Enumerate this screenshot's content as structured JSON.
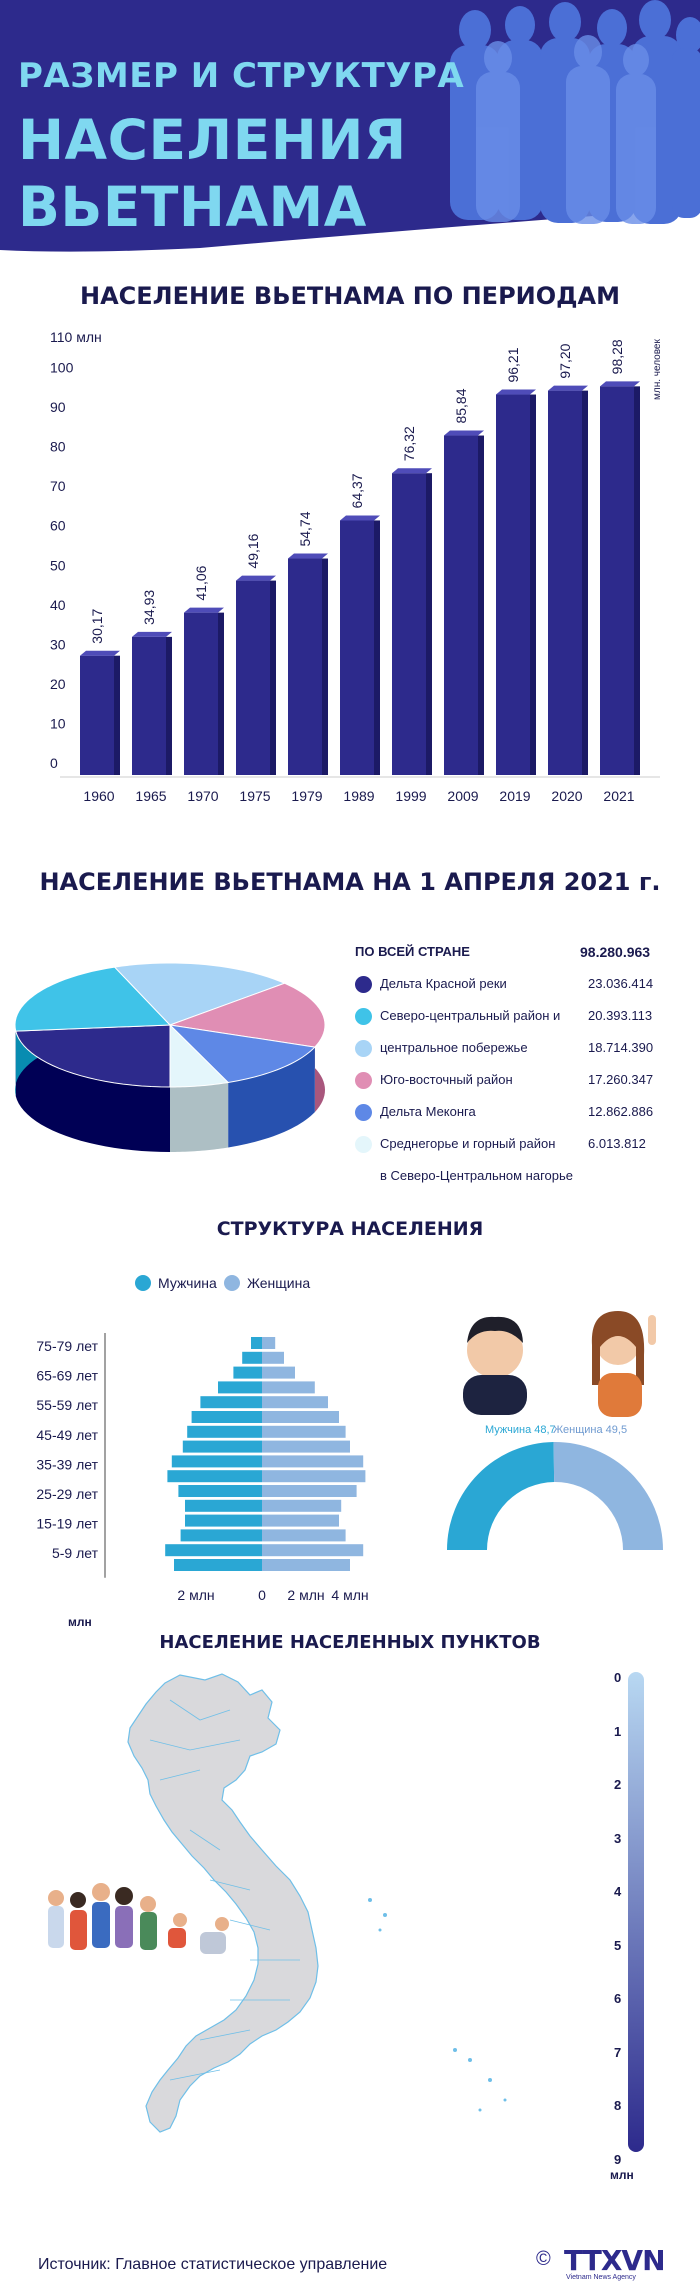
{
  "header": {
    "title_line1": "РАЗМЕР И СТРУКТУРА",
    "title_line2": "НАСЕЛЕНИЯ",
    "title_line3": "ВЬЕТНАМА"
  },
  "colors": {
    "navy": "#2d2a8c",
    "light_blue": "#7fd8f0",
    "male": "#2aa7d4",
    "female": "#8fb6e0"
  },
  "chart_data": [
    {
      "type": "bar",
      "title": "НАСЕЛЕНИЕ ВЬЕТНАМА ПО ПЕРИОДАМ",
      "ylabel": "110 млн",
      "unit_label": "млн. человек",
      "categories": [
        "1960",
        "1965",
        "1970",
        "1975",
        "1979",
        "1989",
        "1999",
        "2009",
        "2019",
        "2020",
        "2021"
      ],
      "values": [
        30.17,
        34.93,
        41.06,
        49.16,
        54.74,
        64.37,
        76.32,
        85.84,
        96.21,
        97.2,
        98.28
      ],
      "value_labels": [
        "30,17",
        "34,93",
        "41,06",
        "49,16",
        "54,74",
        "64,37",
        "76,32",
        "85,84",
        "96,21",
        "97,20",
        "98,28"
      ],
      "yticks": [
        "0",
        "10",
        "20",
        "30",
        "40",
        "50",
        "60",
        "70",
        "80",
        "90",
        "100"
      ],
      "ylim": [
        0,
        110
      ]
    },
    {
      "type": "pie",
      "title": "НАСЕЛЕНИЕ ВЬЕТНАМА НА 1 АПРЕЛЯ 2021 г.",
      "total_label": "ПО ВСЕЙ СТРАНЕ",
      "total_value": "98.280.963",
      "categories": [
        "Дельта Красной реки",
        "Северо-центральный район и",
        "центральное побережье",
        "Юго-восточный район",
        "Дельта Меконга",
        "Среднегорье и горный район",
        "в Северо-Центральном нагорье"
      ],
      "slices": [
        {
          "label": "Дельта Красной реки",
          "value": 23036414,
          "value_label": "23.036.414",
          "color": "#2d2a8c"
        },
        {
          "label": "Северо-центральный район и",
          "value": 20393113,
          "value_label": "20.393.113",
          "color": "#3fc3e8"
        },
        {
          "label": "центральное побережье",
          "value": 18714390,
          "value_label": "18.714.390",
          "color": "#a8d4f6"
        },
        {
          "label": "Юго-восточный район",
          "value": 17260347,
          "value_label": "17.260.347",
          "color": "#e08eb4"
        },
        {
          "label": "Дельта Меконга",
          "value": 12862886,
          "value_label": "12.862.886",
          "color": "#5e88e6"
        },
        {
          "label": "Среднегорье и горный район",
          "label2": "в Северо-Центральном нагорье",
          "value": 6013812,
          "value_label": "6.013.812",
          "color": "#e4f6fb"
        }
      ]
    },
    {
      "type": "bar",
      "title": "СТРУКТУРА НАСЕЛЕНИЯ",
      "legend": [
        "Мужчина",
        "Женщина"
      ],
      "age_labels": [
        "75-79 лет",
        "65-69 лет",
        "55-59 лет",
        "45-49 лет",
        "35-39 лет",
        "25-29 лет",
        "15-19 лет",
        "5-9 лет"
      ],
      "xtick_labels": [
        "2 млн",
        "0",
        "2 млн",
        "4 млн"
      ],
      "male_millions": [
        0.5,
        0.9,
        1.3,
        2.0,
        2.8,
        3.2,
        3.4,
        3.6,
        4.1,
        4.3,
        3.8,
        3.5,
        3.5,
        3.7,
        4.4,
        4.0
      ],
      "female_millions": [
        0.6,
        1.0,
        1.5,
        2.4,
        3.0,
        3.5,
        3.8,
        4.0,
        4.6,
        4.7,
        4.3,
        3.6,
        3.5,
        3.8,
        4.6,
        4.0
      ],
      "gender_labels": [
        "Мужчина 48,7",
        "Женщина 49,5"
      ],
      "male_share": 48.7,
      "female_share": 49.5
    }
  ],
  "map": {
    "title": "НАСЕЛЕНИЕ НАСЕЛЕННЫХ ПУНКТОВ",
    "unit_top": "млн",
    "scale": [
      "0",
      "1",
      "2",
      "3",
      "4",
      "5",
      "6",
      "7",
      "8",
      "9"
    ],
    "unit_bottom": "млн"
  },
  "footer": {
    "source": "Источник: Главное статистическое управление",
    "copyright": "©",
    "logo": "TTXVN",
    "logo_sub": "Vietnam News Agency"
  }
}
